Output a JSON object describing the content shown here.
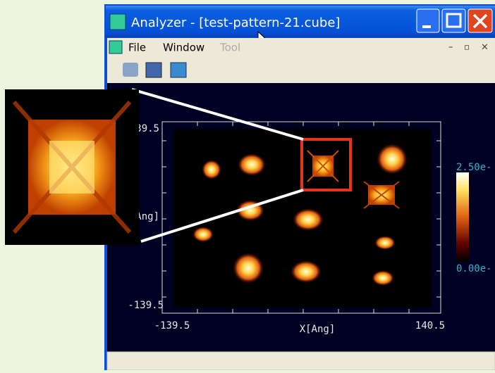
{
  "window": {
    "title": "Analyzer - [test-pattern-21.cube]",
    "menu": [
      "File",
      "Window",
      "Tool"
    ]
  },
  "plot": {
    "x_axis": {
      "label": "X[Ang]",
      "min_label": "-139.5",
      "max_label": "140.5"
    },
    "y_axis": {
      "label": "Y[Ang]",
      "min_label": "-139.5",
      "max_label": "139.5"
    },
    "colorbar": {
      "max_label": "2.50e-",
      "min_label": "0.00e-"
    }
  }
}
